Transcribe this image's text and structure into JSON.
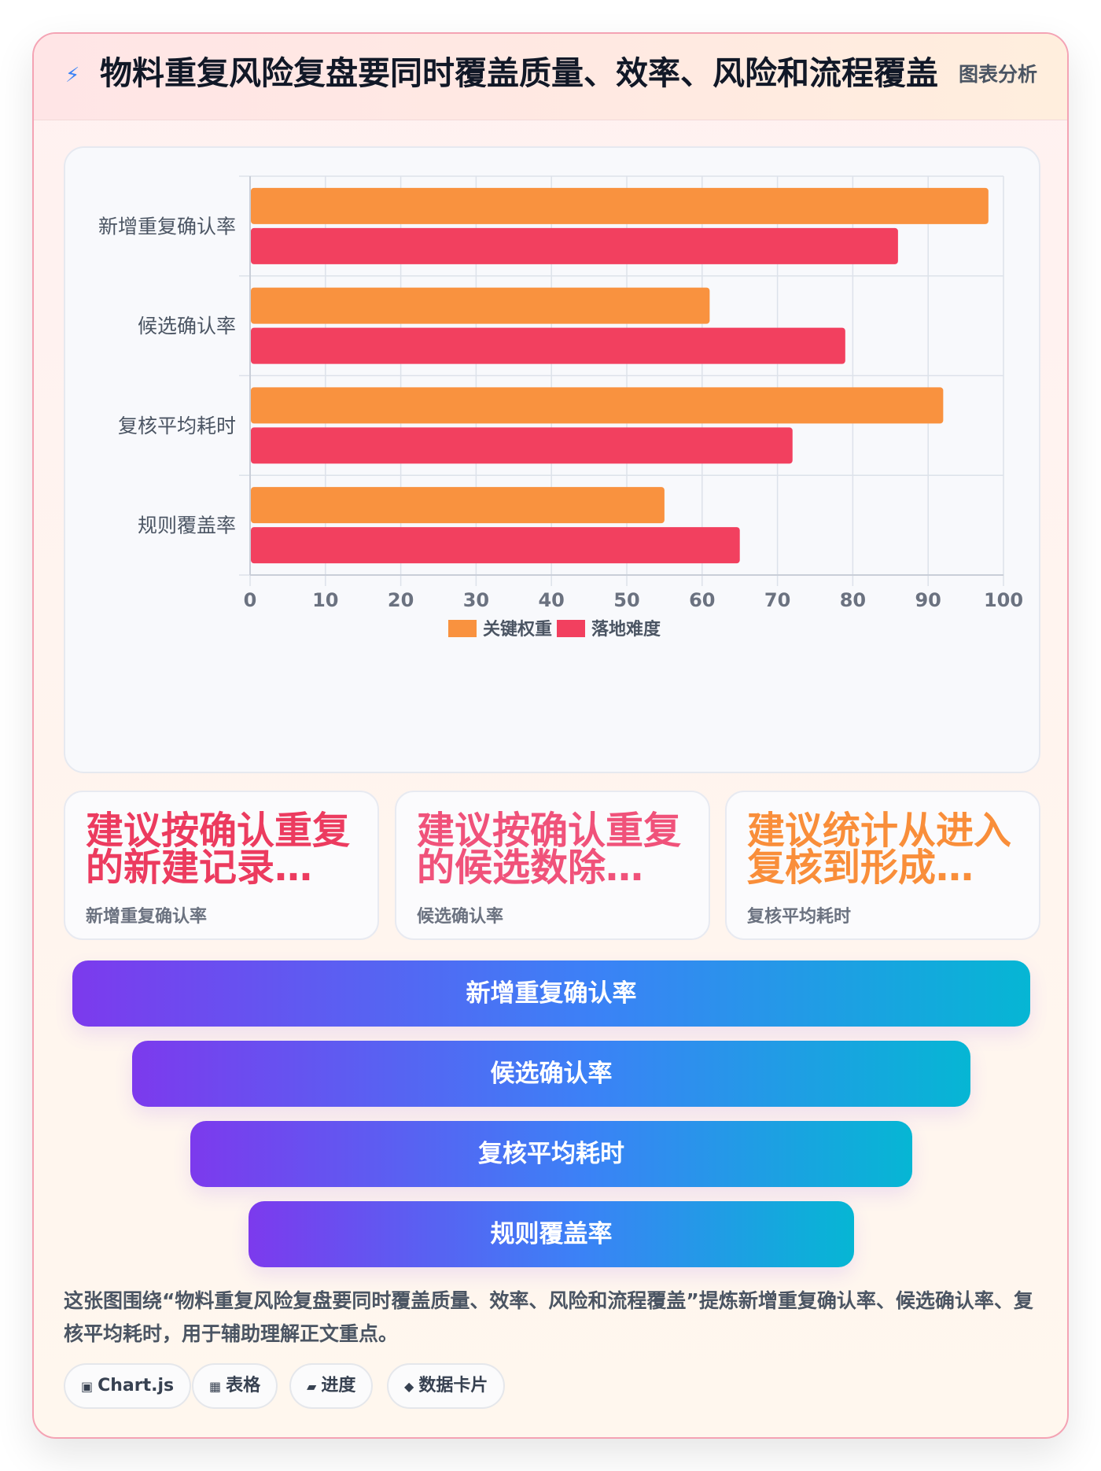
{
  "header": {
    "title": "物料重复风险复盘要同时覆盖质量、效率、风险和流程覆盖",
    "tag": "图表分析"
  },
  "chart_data": {
    "type": "bar",
    "orientation": "horizontal",
    "categories": [
      "新增重复确认率",
      "候选确认率",
      "复核平均耗时",
      "规则覆盖率"
    ],
    "series": [
      {
        "name": "关键权重",
        "color": "#f9923f",
        "values": [
          98,
          61,
          92,
          55
        ]
      },
      {
        "name": "落地难度",
        "color": "#f2405f",
        "values": [
          86,
          79,
          72,
          65
        ]
      }
    ],
    "xlim": [
      0,
      100
    ],
    "xticks": [
      0,
      10,
      20,
      30,
      40,
      50,
      60,
      70,
      80,
      90,
      100
    ],
    "grid": true,
    "legend": "bottom"
  },
  "kpis": [
    {
      "text": "建议按确认重复的新建记录…",
      "label": "新增重复确认率",
      "color": "#ec3b5f"
    },
    {
      "text": "建议按确认重复的候选数除…",
      "label": "候选确认率",
      "color": "#f0527a"
    },
    {
      "text": "建议统计从进入复核到形成…",
      "label": "复核平均耗时",
      "color": "#f98e3a"
    }
  ],
  "funnel": [
    "新增重复确认率",
    "候选确认率",
    "复核平均耗时",
    "规则覆盖率"
  ],
  "summary": "这张图围绕“物料重复风险复盘要同时覆盖质量、效率、风险和流程覆盖”提炼新增重复确认率、候选确认率、复核平均耗时，用于辅助理解正文重点。",
  "chips": [
    {
      "icon": "▣",
      "label": "Chart.js"
    },
    {
      "icon": "▦",
      "label": "表格"
    },
    {
      "icon": "▰",
      "label": "进度"
    },
    {
      "icon": "◆",
      "label": "数据卡片"
    }
  ]
}
